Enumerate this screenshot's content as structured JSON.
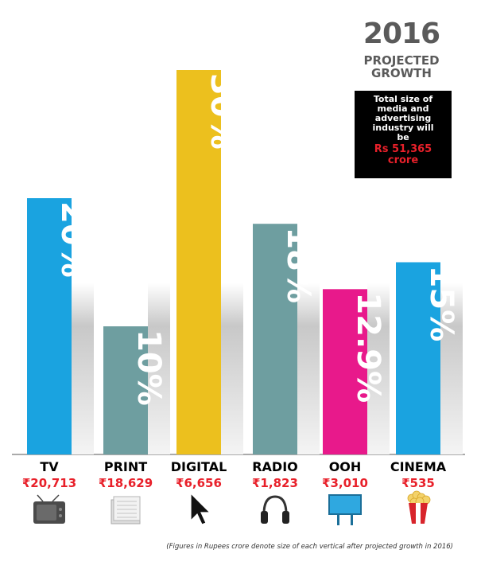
{
  "header": {
    "year": "2016",
    "subtitle_line1": "PROJECTED",
    "subtitle_line2": "GROWTH"
  },
  "info_box": {
    "text": "Total size of media and advertising industry will be",
    "amount_line1": "Rs 51,365",
    "amount_line2": "crore"
  },
  "footnote": "(Figures in Rupees crore denote size of each vertical after projected growth in 2016)",
  "chart_data": {
    "type": "bar",
    "categories": [
      "TV",
      "PRINT",
      "DIGITAL",
      "RADIO",
      "OOH",
      "CINEMA"
    ],
    "values": [
      20,
      10,
      30,
      18,
      12.9,
      15
    ],
    "data_labels": [
      "20%",
      "10%",
      "30%",
      "18%",
      "12.9%",
      "15%"
    ],
    "amounts": [
      "₹20,713",
      "₹18,629",
      "₹6,656",
      "₹1,823",
      "₹3,010",
      "₹535"
    ],
    "icons": [
      "tv-icon",
      "newspaper-icon",
      "cursor-icon",
      "headphones-icon",
      "billboard-icon",
      "popcorn-icon"
    ],
    "colors": [
      "#1aa3e0",
      "#6e9ea0",
      "#ecc01e",
      "#6e9ea0",
      "#e8198b",
      "#1aa3e0"
    ],
    "ylim": [
      0,
      30
    ],
    "grid": false,
    "label_color": "#000000",
    "amount_color": "#e8202a"
  }
}
